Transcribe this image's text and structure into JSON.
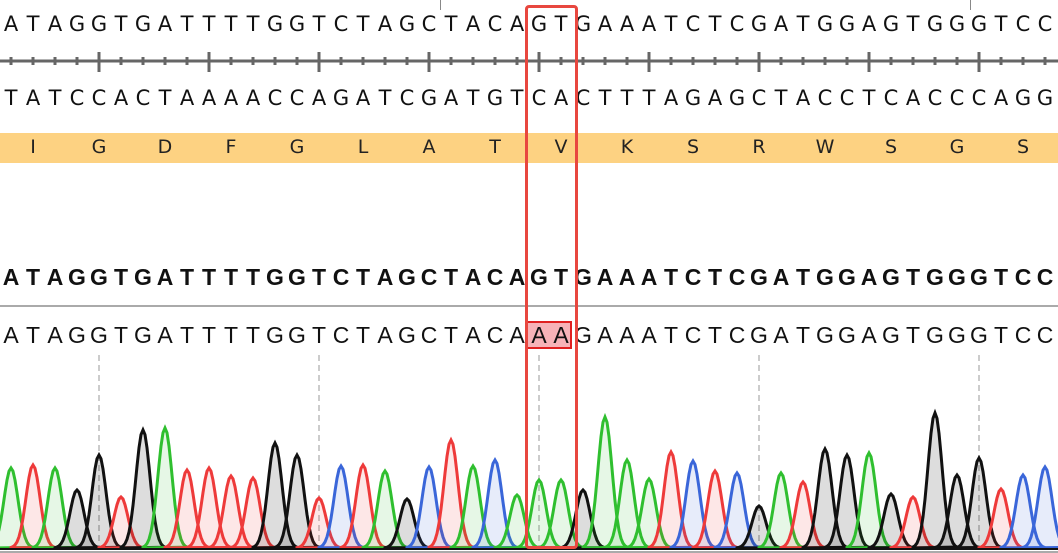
{
  "reference_sequence": "ATAGGTGATTTTGGTCTAGCTACAGTGAAATCTCGATGGAGTGGGTCC",
  "complement_sequence": "TATCCACTAAAACCAGATCGATGTCACTTTAGAGCTACCTCACCCAGG",
  "translation": [
    "I",
    "G",
    "D",
    "F",
    "G",
    "L",
    "A",
    "T",
    "V",
    "K",
    "S",
    "R",
    "W",
    "S",
    "G",
    "S"
  ],
  "consensus_sequence": "ATAGGTGATTTTGGTCTAGCTACAGTGAAATCTCGATGGAGTGGGTCC",
  "read_sequence": "ATAGGTGATTTTGGTCTAGCTACAAAGAAATCTCGATGGAGTGGGTCC",
  "mismatch": {
    "positions": [
      25,
      26
    ],
    "reference": "GT",
    "read": "AA",
    "highlight_color": "#f7b3b8"
  },
  "selection_box_color": "#e8473f",
  "translation_band_color": "#fdd282",
  "base_colors": {
    "A": "#2fbf2f",
    "C": "#3a66d9",
    "G": "#111111",
    "T": "#ee3a3a"
  },
  "trace_peak_intensities": [
    80,
    83,
    80,
    58,
    93,
    51,
    118,
    120,
    78,
    80,
    72,
    70,
    105,
    93,
    50,
    82,
    83,
    77,
    49,
    81,
    108,
    82,
    88,
    53,
    68,
    68,
    58,
    131,
    88,
    69,
    96,
    87,
    77,
    75,
    42,
    75,
    66,
    99,
    93,
    95,
    54,
    51,
    135,
    73,
    90,
    59,
    73,
    81
  ]
}
